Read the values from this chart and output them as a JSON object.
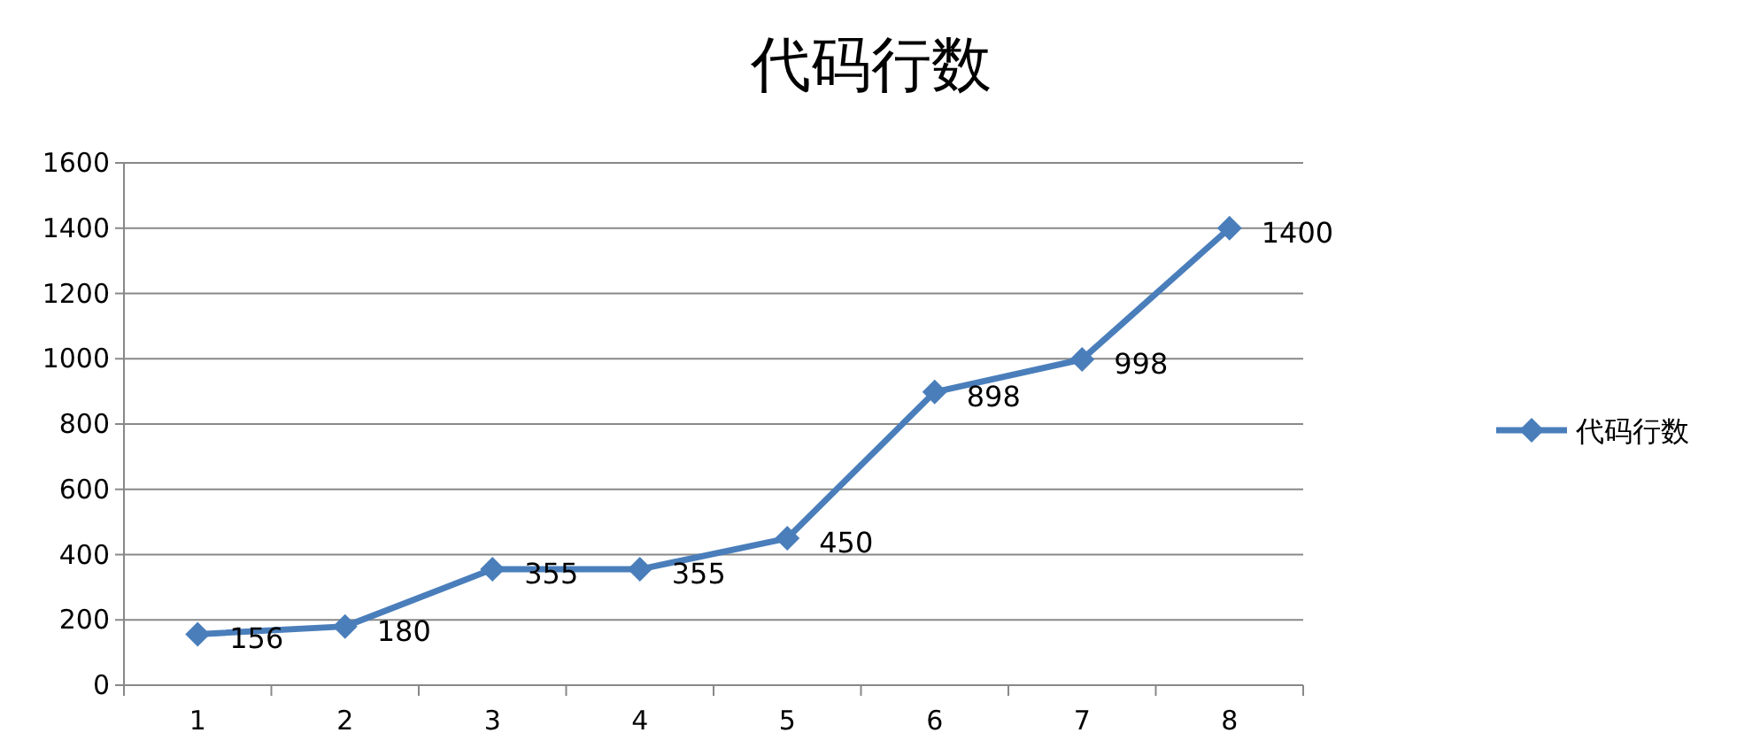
{
  "chart_data": {
    "type": "line",
    "title": "代码行数",
    "categories": [
      "1",
      "2",
      "3",
      "4",
      "5",
      "6",
      "7",
      "8"
    ],
    "series": [
      {
        "name": "代码行数",
        "color": "#4a7ebb",
        "values": [
          156,
          180,
          355,
          355,
          450,
          898,
          998,
          1400
        ]
      }
    ],
    "ylim": [
      0,
      1600
    ],
    "yticks": [
      0,
      200,
      400,
      600,
      800,
      1000,
      1200,
      1400,
      1600
    ],
    "grid": "y",
    "legend": "right",
    "marker": "diamond",
    "line_style": "solid",
    "data_labels": true
  }
}
